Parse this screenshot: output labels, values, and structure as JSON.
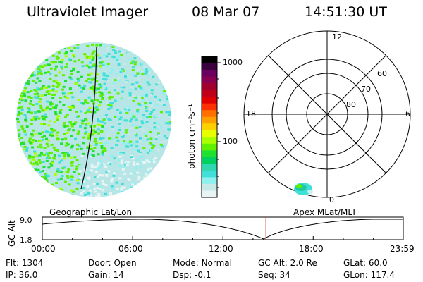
{
  "header": {
    "title": "Ultraviolet Imager",
    "date": "08 Mar 07",
    "time": "14:51:30 UT"
  },
  "colorbar": {
    "unit_label": "photon cm⁻²s⁻¹",
    "tick_labels": [
      "1000",
      "100"
    ],
    "colors": [
      "#000000",
      "#3a0040",
      "#6a0060",
      "#8a0050",
      "#a00030",
      "#c00018",
      "#e00000",
      "#ff3000",
      "#ff7000",
      "#ffa000",
      "#ffd000",
      "#e8ff00",
      "#a8ff00",
      "#60f000",
      "#20e030",
      "#00d060",
      "#30d8b0",
      "#40e0d8",
      "#90f0f0",
      "#c8e8e8",
      "#e8f4f4"
    ]
  },
  "polar_plot": {
    "mlt_labels": [
      "12",
      "18",
      "6",
      "0"
    ],
    "mlat_labels": [
      "60",
      "70",
      "80"
    ]
  },
  "altitude_panel": {
    "axis_label": "GC Alt",
    "y_ticks": [
      "9.0",
      "1.8"
    ],
    "left_label": "Geographic Lat/Lon",
    "right_label": "Apex  MLat/MLT",
    "time_ticks": [
      "00:00",
      "06:00",
      "12:00",
      "18:00",
      "23:59"
    ],
    "marker_time": "14:51:30"
  },
  "status": {
    "flt": {
      "label": "Flt:",
      "value": "1304"
    },
    "ip": {
      "label": "IP:",
      "value": "36.0"
    },
    "door": {
      "label": "Door:",
      "value": "Open"
    },
    "gain": {
      "label": "Gain:",
      "value": "14"
    },
    "mode": {
      "label": "Mode:",
      "value": "Normal"
    },
    "dsp": {
      "label": "Dsp:",
      "value": "-0.1"
    },
    "gcalt": {
      "label": "GC Alt:",
      "value": "2.0 Re"
    },
    "seq": {
      "label": "Seq:",
      "value": "34"
    },
    "glat": {
      "label": "GLat:",
      "value": "60.0"
    },
    "glon": {
      "label": "GLon:",
      "value": "117.4"
    }
  },
  "accent_colors": {
    "marker": "#cc0000"
  }
}
